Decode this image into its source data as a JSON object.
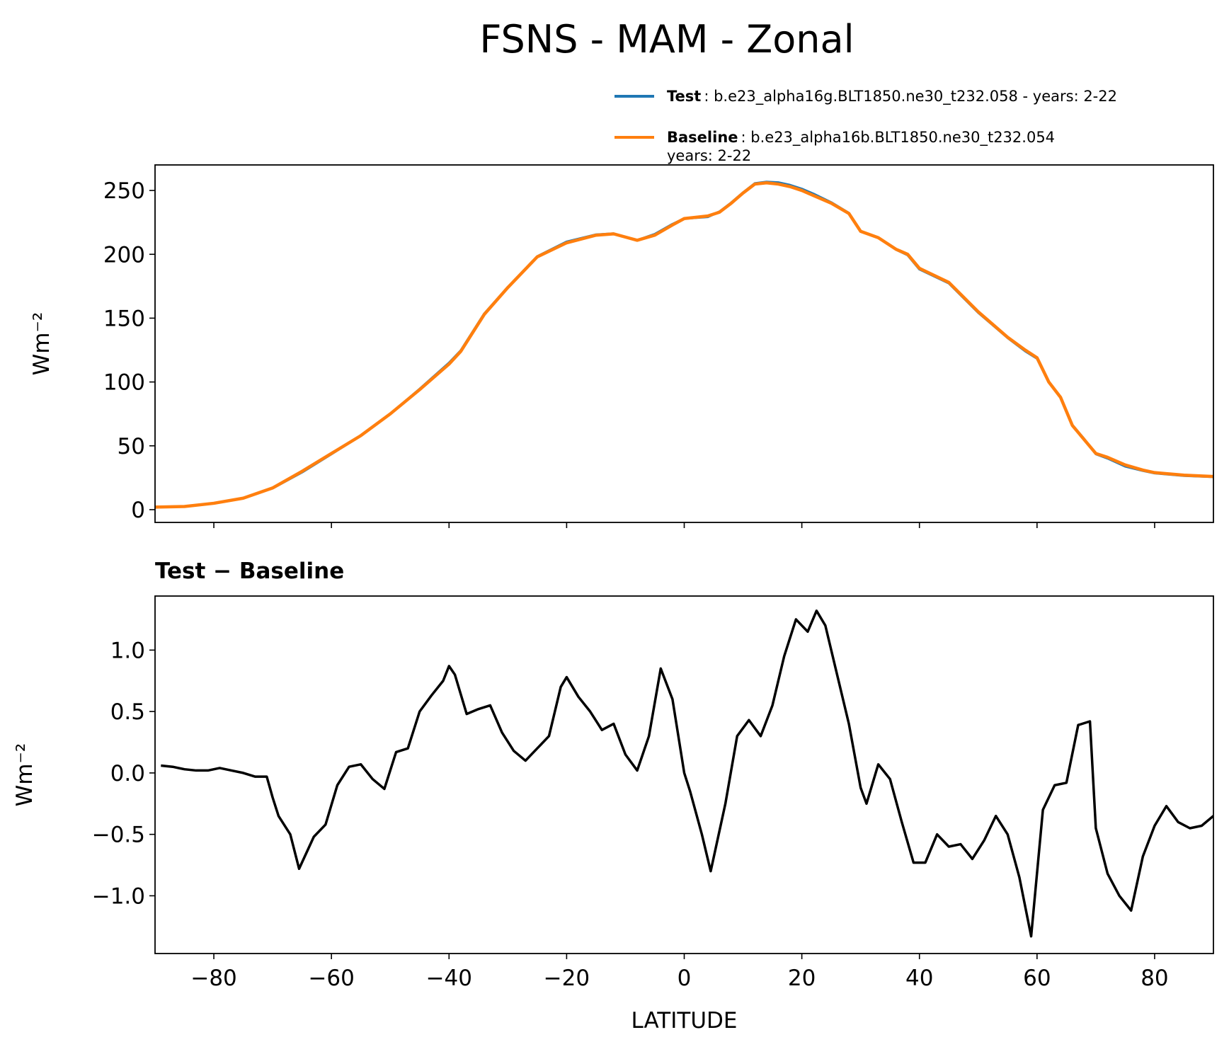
{
  "chart_data": [
    {
      "type": "line",
      "title": "FSNS - MAM - Zonal",
      "ylabel": "Wm⁻²",
      "xlim": [
        -90,
        90
      ],
      "ylim": [
        -10,
        270
      ],
      "xticks": [
        -80,
        -60,
        -40,
        -20,
        0,
        20,
        40,
        60,
        80
      ],
      "yticks": [
        0,
        50,
        100,
        150,
        200,
        250
      ],
      "legend": "upper right",
      "x": [
        -90,
        -85,
        -80,
        -75,
        -70,
        -65,
        -60,
        -55,
        -50,
        -45,
        -40,
        -38,
        -34,
        -30,
        -25,
        -20,
        -15,
        -12,
        -8,
        -5,
        -2,
        0,
        4,
        6,
        8,
        10,
        12,
        14,
        16,
        18,
        20,
        22,
        25,
        28,
        30,
        33,
        36,
        38,
        40,
        45,
        50,
        55,
        58,
        60,
        62,
        64,
        66,
        68,
        70,
        72,
        75,
        78,
        80,
        85,
        90
      ],
      "series": [
        {
          "name": "Test",
          "description": [
            ": b.e23_alpha16g.BLT1850.ne30_t232.058 - years: 2-22"
          ],
          "color": "#1f77b4",
          "values": [
            2.1,
            2.5,
            5,
            9,
            16.8,
            29.3,
            43.6,
            58,
            75,
            94.5,
            114.9,
            124.6,
            153.5,
            174.2,
            198.3,
            209.8,
            215.4,
            216.2,
            211,
            215.8,
            223.6,
            228,
            229.3,
            233.4,
            240.4,
            248.3,
            255.5,
            256.7,
            256.2,
            254.2,
            251.2,
            247.3,
            240.6,
            232.3,
            217.8,
            213.1,
            203.8,
            199.4,
            188.3,
            177.4,
            154.4,
            134.6,
            124.2,
            118.4,
            99.9,
            87.9,
            66.3,
            55.4,
            43.6,
            40.2,
            33.9,
            30.5,
            28.6,
            26.6,
            25.7
          ]
        },
        {
          "name": "Baseline",
          "description": [
            ": b.e23_alpha16b.BLT1850.ne30_t232.054",
            "years: 2-22"
          ],
          "color": "#ff7f0e",
          "values": [
            2,
            2.5,
            5,
            9,
            17,
            30,
            44,
            58,
            75,
            94,
            114,
            124,
            153,
            174,
            198,
            209,
            215,
            216,
            211,
            215,
            223,
            228,
            230,
            233,
            240,
            248,
            255,
            256,
            255,
            253,
            250,
            246,
            240,
            232,
            218,
            213,
            204,
            200,
            189,
            178,
            155,
            135,
            125,
            119,
            100,
            88,
            66,
            55,
            44,
            41,
            35,
            31,
            29,
            27,
            26
          ]
        }
      ]
    },
    {
      "type": "line",
      "subtitle": "Test − Baseline",
      "xlabel": "LATITUDE",
      "ylabel": "Wm⁻²",
      "xlim": [
        -90,
        90
      ],
      "ylim": [
        -1.47,
        1.44
      ],
      "xticks": [
        {
          "value": -80,
          "label": "−80"
        },
        {
          "value": -60,
          "label": "−60"
        },
        {
          "value": -40,
          "label": "−40"
        },
        {
          "value": -20,
          "label": "−20"
        },
        0,
        20,
        40,
        60,
        80
      ],
      "yticks": [
        {
          "value": -1,
          "label": "−1.0"
        },
        {
          "value": -0.5,
          "label": "−0.5"
        },
        {
          "value": 0,
          "label": "0.0"
        },
        0.5,
        {
          "value": 1,
          "label": "1.0"
        }
      ],
      "x": [
        -89,
        -87,
        -85,
        -83,
        -81,
        -79,
        -77,
        -75,
        -73,
        -71,
        -70,
        -69,
        -67,
        -65.5,
        -63,
        -61,
        -59,
        -57,
        -55,
        -53,
        -51,
        -49,
        -47,
        -45,
        -43,
        -41,
        -40,
        -39,
        -37,
        -35,
        -33,
        -31,
        -29,
        -27,
        -25,
        -23,
        -21,
        -20,
        -18,
        -16,
        -14,
        -12,
        -10,
        -8,
        -6,
        -4,
        -2,
        0,
        1,
        3,
        4.5,
        7,
        9,
        11,
        13,
        15,
        17,
        19,
        21,
        22.5,
        24,
        26,
        28,
        30,
        31,
        33,
        35,
        37,
        39,
        41,
        43,
        45,
        47,
        49,
        51,
        53,
        55,
        57,
        59,
        61,
        63,
        65,
        67,
        69,
        70,
        72,
        74,
        76,
        78,
        80,
        82,
        84,
        86,
        88,
        90
      ],
      "series": [
        {
          "name": "Test − Baseline",
          "color": "#000000",
          "values": [
            0.06,
            0.05,
            0.03,
            0.02,
            0.02,
            0.04,
            0.02,
            0,
            -0.03,
            -0.03,
            -0.2,
            -0.35,
            -0.5,
            -0.78,
            -0.52,
            -0.42,
            -0.1,
            0.05,
            0.07,
            -0.05,
            -0.13,
            0.17,
            0.2,
            0.5,
            0.63,
            0.75,
            0.87,
            0.8,
            0.48,
            0.52,
            0.55,
            0.33,
            0.18,
            0.1,
            0.2,
            0.3,
            0.7,
            0.78,
            0.62,
            0.5,
            0.35,
            0.4,
            0.15,
            0.02,
            0.3,
            0.85,
            0.6,
            0,
            -0.15,
            -0.5,
            -0.8,
            -0.25,
            0.3,
            0.43,
            0.3,
            0.55,
            0.95,
            1.25,
            1.15,
            1.32,
            1.2,
            0.8,
            0.4,
            -0.12,
            -0.25,
            0.07,
            -0.05,
            -0.4,
            -0.73,
            -0.73,
            -0.5,
            -0.6,
            -0.58,
            -0.7,
            -0.55,
            -0.35,
            -0.5,
            -0.85,
            -1.33,
            -0.3,
            -0.1,
            -0.08,
            0.39,
            0.42,
            -0.45,
            -0.82,
            -1,
            -1.12,
            -0.68,
            -0.43,
            -0.27,
            -0.4,
            -0.45,
            -0.43,
            -0.35
          ]
        }
      ]
    }
  ]
}
